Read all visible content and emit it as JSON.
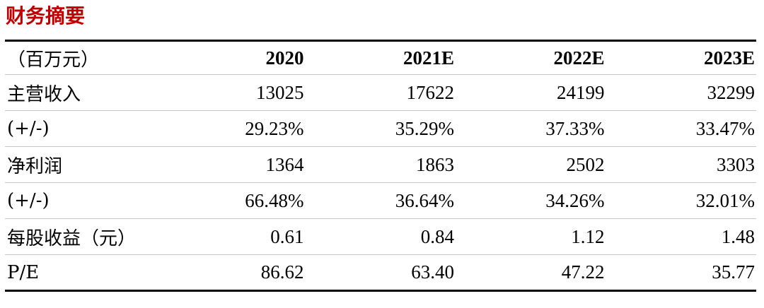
{
  "page": {
    "title": "财务摘要"
  },
  "table": {
    "unit_header": "（百万元）",
    "year_columns": [
      "2020",
      "2021E",
      "2022E",
      "2023E"
    ],
    "rows": [
      {
        "label": "主营收入",
        "values": [
          "13025",
          "17622",
          "24199",
          "32299"
        ]
      },
      {
        "label": "(+/-)",
        "values": [
          "29.23%",
          "35.29%",
          "37.33%",
          "33.47%"
        ]
      },
      {
        "label": "净利润",
        "values": [
          "1364",
          "1863",
          "2502",
          "3303"
        ]
      },
      {
        "label": "(+/-)",
        "values": [
          "66.48%",
          "36.64%",
          "34.26%",
          "32.01%"
        ]
      },
      {
        "label": "每股收益（元）",
        "values": [
          "0.61",
          "0.84",
          "1.12",
          "1.48"
        ]
      },
      {
        "label": "P/E",
        "values": [
          "86.62",
          "63.40",
          "47.22",
          "35.77"
        ]
      }
    ]
  },
  "colors": {
    "accent": "#c00000",
    "text": "#000000",
    "thick-rule": "#000000",
    "thin-rule": "#c6c6c6",
    "background": "#ffffff"
  }
}
